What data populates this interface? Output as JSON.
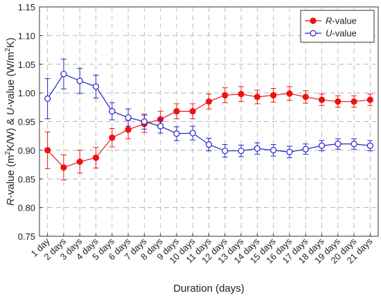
{
  "chart_data": {
    "type": "line",
    "xlabel": "Duration (days)",
    "ylabel": {
      "r_part": "R",
      "r_rest": "-value (m",
      "r_sup": "2",
      "r_tail": "K/W) & ",
      "u_part": "U",
      "u_rest": "-value (W/m",
      "u_sup": "2",
      "u_tail": "K)"
    },
    "categories": [
      "1 day",
      "2 days",
      "3 days",
      "4 days",
      "5 days",
      "6 days",
      "7 days",
      "8 days",
      "9 days",
      "10 days",
      "11 days",
      "12 days",
      "13 days",
      "14 days",
      "15 days",
      "16 days",
      "17 days",
      "18 days",
      "19 days",
      "20 days",
      "21 days"
    ],
    "ylim": [
      0.75,
      1.15
    ],
    "yticks": [
      "0.75",
      "0.80",
      "0.85",
      "0.90",
      "0.95",
      "1.00",
      "1.05",
      "1.10",
      "1.15"
    ],
    "grid": true,
    "legend_position": "top-right",
    "series": [
      {
        "name_italic": "R",
        "name_rest": "-value",
        "color": "#ee1111",
        "marker": "filled-circle",
        "values": [
          0.9,
          0.87,
          0.88,
          0.887,
          0.922,
          0.936,
          0.946,
          0.954,
          0.968,
          0.968,
          0.985,
          0.996,
          0.998,
          0.993,
          0.996,
          0.999,
          0.993,
          0.988,
          0.985,
          0.985,
          0.988
        ],
        "errors": [
          0.032,
          0.022,
          0.02,
          0.018,
          0.016,
          0.016,
          0.015,
          0.014,
          0.013,
          0.013,
          0.013,
          0.013,
          0.013,
          0.012,
          0.012,
          0.012,
          0.011,
          0.01,
          0.01,
          0.01,
          0.01
        ]
      },
      {
        "name_italic": "U",
        "name_rest": "-value",
        "color": "#2222cc",
        "marker": "open-circle",
        "values": [
          0.99,
          1.033,
          1.021,
          1.011,
          0.968,
          0.957,
          0.95,
          0.942,
          0.929,
          0.93,
          0.91,
          0.899,
          0.899,
          0.903,
          0.9,
          0.897,
          0.902,
          0.908,
          0.911,
          0.911,
          0.908
        ],
        "errors": [
          0.035,
          0.026,
          0.022,
          0.02,
          0.015,
          0.015,
          0.013,
          0.012,
          0.012,
          0.012,
          0.011,
          0.011,
          0.01,
          0.01,
          0.01,
          0.01,
          0.009,
          0.009,
          0.009,
          0.009,
          0.009
        ]
      }
    ]
  }
}
